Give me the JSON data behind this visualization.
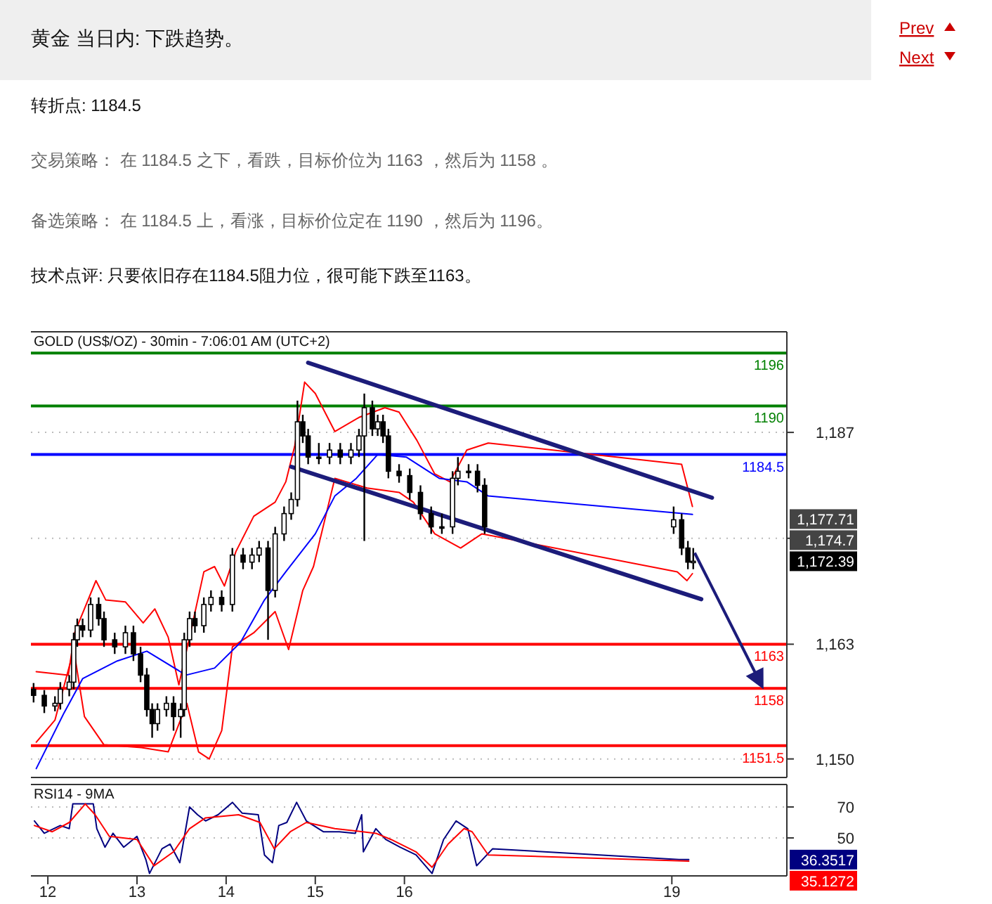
{
  "chart_data": [
    {
      "type": "other",
      "title": "黄金 当日内: 下跌趋势。",
      "annotations": [
        "转折点: 1184.5",
        "交易策略： 在 1184.5 之下，看跌，目标价位为 1163 ，然后为 1158 。",
        "备选策略： 在 1184.5 上，看涨，目标价位定在 1190 ，然后为 1196。",
        "技术点评: 只要依旧存在1184.5阻力位，很可能下跌至1163。",
        "Prev",
        "Next"
      ]
    },
    {
      "type": "candlestick",
      "title": "GOLD (US$/OZ) - 30min - 7:06:01 AM (UTC+2)",
      "color": "#000000",
      "x": [
        11.84,
        11.96,
        12.08,
        12.14,
        12.24,
        12.29,
        12.33,
        12.39,
        12.48,
        12.57,
        12.63,
        12.75,
        12.87,
        12.96,
        13.04,
        13.11,
        13.17,
        13.23,
        13.33,
        13.41,
        13.49,
        13.53,
        13.59,
        13.65,
        13.75,
        13.83,
        13.95,
        14.07,
        14.19,
        14.29,
        14.37,
        14.47,
        14.55,
        14.65,
        14.73,
        14.8,
        14.86,
        14.92,
        15.04,
        15.16,
        15.28,
        15.4,
        15.49,
        15.55,
        15.64,
        15.7,
        15.76,
        15.82,
        15.94,
        16.06,
        16.18,
        16.3,
        16.42,
        16.54,
        16.6,
        16.72,
        16.82,
        16.9,
        19.02,
        19.11,
        19.18,
        19.24
      ],
      "ohlc": [
        [
          1157.9,
          1158.6,
          1156.4,
          1157.2
        ],
        [
          1157.2,
          1157.8,
          1155.2,
          1156.0
        ],
        [
          1156.0,
          1157.1,
          1155.4,
          1156.3
        ],
        [
          1156.3,
          1158.7,
          1155.6,
          1157.9
        ],
        [
          1157.9,
          1159.5,
          1157.1,
          1158.7
        ],
        [
          1158.7,
          1164.3,
          1157.9,
          1163.5
        ],
        [
          1163.5,
          1165.9,
          1162.7,
          1165.1
        ],
        [
          1165.1,
          1165.9,
          1163.8,
          1164.6
        ],
        [
          1164.6,
          1168.3,
          1163.8,
          1167.5
        ],
        [
          1167.5,
          1168.3,
          1165.1,
          1165.9
        ],
        [
          1165.9,
          1166.7,
          1162.7,
          1163.5
        ],
        [
          1163.5,
          1164.3,
          1161.9,
          1162.7
        ],
        [
          1162.7,
          1165.1,
          1161.9,
          1164.3
        ],
        [
          1164.3,
          1165.1,
          1161.1,
          1161.9
        ],
        [
          1161.9,
          1162.7,
          1158.7,
          1159.5
        ],
        [
          1159.5,
          1160.3,
          1154.8,
          1155.6
        ],
        [
          1155.6,
          1156.3,
          1152.4,
          1154.0
        ],
        [
          1154.0,
          1156.3,
          1153.2,
          1155.6
        ],
        [
          1155.6,
          1157.1,
          1154.8,
          1156.3
        ],
        [
          1156.3,
          1157.1,
          1153.2,
          1154.8
        ],
        [
          1154.8,
          1156.3,
          1152.4,
          1155.6
        ],
        [
          1155.6,
          1164.3,
          1154.8,
          1163.5
        ],
        [
          1163.5,
          1166.7,
          1162.7,
          1165.9
        ],
        [
          1165.9,
          1166.7,
          1164.3,
          1165.1
        ],
        [
          1165.1,
          1168.3,
          1164.3,
          1167.5
        ],
        [
          1167.5,
          1169.1,
          1166.7,
          1168.3
        ],
        [
          1168.3,
          1169.1,
          1166.7,
          1167.5
        ],
        [
          1167.5,
          1173.9,
          1166.7,
          1173.1
        ],
        [
          1173.1,
          1173.9,
          1171.5,
          1172.3
        ],
        [
          1172.3,
          1173.9,
          1171.5,
          1173.1
        ],
        [
          1173.1,
          1174.7,
          1172.3,
          1173.9
        ],
        [
          1173.9,
          1174.7,
          1163.5,
          1169.1
        ],
        [
          1169.1,
          1176.3,
          1168.3,
          1175.5
        ],
        [
          1175.5,
          1178.6,
          1174.7,
          1177.8
        ],
        [
          1177.8,
          1180.2,
          1177.1,
          1179.4
        ],
        [
          1179.4,
          1190.6,
          1178.6,
          1188.2
        ],
        [
          1188.2,
          1189.0,
          1185.8,
          1186.6
        ],
        [
          1186.6,
          1187.4,
          1183.4,
          1184.2
        ],
        [
          1184.2,
          1185.8,
          1183.4,
          1184.2
        ],
        [
          1184.2,
          1185.8,
          1183.4,
          1185.0
        ],
        [
          1185.0,
          1185.8,
          1183.4,
          1184.2
        ],
        [
          1184.2,
          1185.8,
          1183.4,
          1185.0
        ],
        [
          1185.0,
          1187.4,
          1184.2,
          1186.6
        ],
        [
          1186.6,
          1191.4,
          1174.7,
          1189.8
        ],
        [
          1189.8,
          1190.6,
          1186.6,
          1187.4
        ],
        [
          1187.4,
          1189.0,
          1186.6,
          1188.2
        ],
        [
          1188.2,
          1189.0,
          1185.8,
          1186.6
        ],
        [
          1186.6,
          1187.4,
          1181.8,
          1182.6
        ],
        [
          1182.6,
          1183.4,
          1181.3,
          1182.1
        ],
        [
          1182.1,
          1182.9,
          1179.4,
          1180.2
        ],
        [
          1180.2,
          1181.0,
          1177.1,
          1177.8
        ],
        [
          1177.8,
          1178.6,
          1175.5,
          1176.3
        ],
        [
          1176.3,
          1177.8,
          1175.5,
          1176.3
        ],
        [
          1176.3,
          1182.6,
          1175.5,
          1181.8
        ],
        [
          1181.8,
          1184.2,
          1181.0,
          1182.6
        ],
        [
          1182.6,
          1183.4,
          1181.8,
          1182.6
        ],
        [
          1182.6,
          1183.4,
          1180.2,
          1181.0
        ],
        [
          1181.0,
          1181.8,
          1175.5,
          1176.3
        ],
        [
          1176.3,
          1178.6,
          1175.5,
          1177.1
        ],
        [
          1177.1,
          1177.8,
          1173.1,
          1173.9
        ],
        [
          1173.9,
          1174.7,
          1171.5,
          1172.3
        ],
        [
          1172.3,
          1173.9,
          1171.5,
          1172.4
        ]
      ],
      "series": [
        {
          "type": "line",
          "color": "#ff0000",
          "x": [
            11.87,
            12.23,
            12.3,
            12.54,
            12.65,
            12.87,
            13.07,
            13.2,
            13.35,
            13.47,
            13.59,
            13.75,
            13.87,
            13.98,
            14.11,
            14.31,
            14.55,
            14.67,
            14.77,
            14.88,
            15.0,
            15.22,
            15.49,
            15.78,
            15.94,
            16.14,
            16.34,
            16.51,
            16.7,
            16.94,
            19.11,
            19.23
          ],
          "values": [
            1159.9,
            1159.5,
            1164.3,
            1170.2,
            1168.0,
            1167.8,
            1165.4,
            1167.0,
            1163.8,
            1158.4,
            1163.8,
            1171.2,
            1171.8,
            1169.6,
            1173.5,
            1177.5,
            1179.1,
            1181.4,
            1185.5,
            1192.7,
            1191.4,
            1187.1,
            1188.7,
            1189.8,
            1189.3,
            1186.1,
            1182.3,
            1181.4,
            1185.0,
            1185.8,
            1183.4,
            1178.6
          ]
        },
        {
          "type": "line",
          "color": "#ff0000",
          "x": [
            11.87,
            12.08,
            12.29,
            12.41,
            12.63,
            13.05,
            13.35,
            13.56,
            13.69,
            13.81,
            13.95,
            14.07,
            14.31,
            14.55,
            14.7,
            14.86,
            14.98,
            15.22,
            15.58,
            15.94,
            16.1,
            16.34,
            16.63,
            16.87,
            19.06,
            19.17,
            19.23
          ],
          "values": [
            1151.9,
            1154.4,
            1162.4,
            1154.8,
            1151.6,
            1151.3,
            1150.8,
            1156.3,
            1150.8,
            1150.0,
            1153.2,
            1162.7,
            1164.3,
            1166.7,
            1162.4,
            1169.1,
            1171.8,
            1181.8,
            1180.7,
            1180.2,
            1179.1,
            1175.5,
            1173.9,
            1175.5,
            1171.2,
            1170.2,
            1171.0
          ]
        },
        {
          "type": "line",
          "color": "#0000ff",
          "x": [
            11.87,
            12.18,
            12.39,
            12.78,
            13.11,
            13.55,
            13.87,
            14.16,
            14.43,
            14.67,
            15.0,
            15.22,
            15.46,
            15.7,
            16.02,
            16.39,
            16.7,
            16.94,
            19.23
          ],
          "values": [
            1148.9,
            1155.2,
            1159.1,
            1161.1,
            1162.2,
            1159.5,
            1160.3,
            1163.2,
            1168.0,
            1171.2,
            1175.5,
            1179.8,
            1181.8,
            1184.5,
            1184.2,
            1181.8,
            1181.4,
            1179.8,
            1177.7
          ]
        },
        {
          "type": "line",
          "color": "#1c1c7a",
          "x": [
            14.92,
            19.45
          ],
          "values": [
            1194.9,
            1179.6
          ]
        },
        {
          "type": "line",
          "color": "#1c1c7a",
          "x": [
            14.73,
            19.33
          ],
          "values": [
            1183.1,
            1168.1
          ]
        }
      ],
      "xlim": [
        11.81,
        20.29
      ],
      "ylim": [
        1147.9,
        1198.4
      ],
      "yticks": [
        {
          "value": 1150,
          "label": "1,150"
        },
        {
          "value": 1163,
          "label": "1,163"
        },
        {
          "value": 1175,
          "label": null
        },
        {
          "value": 1187,
          "label": "1,187"
        }
      ],
      "ref_lines": [
        {
          "axis": "y",
          "value": 1196,
          "label": "1196",
          "color": "#008000"
        },
        {
          "axis": "y",
          "value": 1190,
          "label": "1190",
          "color": "#008000"
        },
        {
          "axis": "y",
          "value": 1184.5,
          "label": "1184.5",
          "color": "#0000ff"
        },
        {
          "axis": "y",
          "value": 1163,
          "label": "1163",
          "color": "#ff0000"
        },
        {
          "axis": "y",
          "value": 1158,
          "label": "1158",
          "color": "#ff0000"
        },
        {
          "axis": "y",
          "value": 1151.5,
          "label": "1151.5",
          "color": "#ff0000"
        }
      ],
      "annotations": [
        "1,177.71",
        "1,174.7",
        "1,172.39"
      ],
      "tick_labels": "y",
      "grid": "y"
    },
    {
      "type": "line",
      "title": "RSI14 - 9MA",
      "series": [
        {
          "color": "#000080",
          "x": [
            11.85,
            11.96,
            12.14,
            12.24,
            12.28,
            12.37,
            12.51,
            12.55,
            12.64,
            12.73,
            12.85,
            13.0,
            13.1,
            13.14,
            13.28,
            13.37,
            13.48,
            13.59,
            13.68,
            13.77,
            13.91,
            14.07,
            14.18,
            14.36,
            14.43,
            14.52,
            14.59,
            14.68,
            14.79,
            14.9,
            15.09,
            15.27,
            15.45,
            15.52,
            15.54,
            15.68,
            15.79,
            15.95,
            16.13,
            16.31,
            16.44,
            16.58,
            16.71,
            16.81,
            16.99,
            19.08,
            19.19
          ],
          "values": [
            61,
            53,
            58,
            56,
            72,
            72,
            72,
            56,
            44,
            53,
            44,
            51,
            36,
            27,
            43,
            46,
            34,
            70,
            65,
            61,
            65,
            73,
            66,
            65,
            39,
            34,
            58,
            60,
            73,
            61,
            54,
            54,
            53,
            65,
            41,
            56,
            49,
            44,
            39,
            27,
            49,
            61,
            56,
            32,
            43,
            36,
            36
          ]
        },
        {
          "color": "#ff0000",
          "x": [
            11.85,
            12.05,
            12.24,
            12.42,
            12.53,
            12.69,
            13.0,
            13.19,
            13.41,
            13.59,
            13.77,
            14.14,
            14.38,
            14.54,
            14.72,
            14.9,
            15.22,
            15.68,
            15.85,
            16.13,
            16.31,
            16.49,
            16.67,
            16.76,
            16.94,
            19.19
          ],
          "values": [
            58,
            54,
            60,
            72,
            65,
            51,
            49,
            32,
            41,
            56,
            63,
            65,
            60,
            43,
            54,
            60,
            56,
            53,
            49,
            41,
            31,
            46,
            56,
            54,
            39,
            35
          ]
        }
      ],
      "xlim": [
        11.81,
        20.29
      ],
      "ylim": [
        25.5,
        84.5
      ],
      "yticks": [
        50,
        70
      ],
      "xticks": [
        12,
        13,
        14,
        15,
        16,
        19
      ],
      "annotations": [
        "36.3517",
        "35.1272"
      ],
      "grid": "y"
    }
  ]
}
